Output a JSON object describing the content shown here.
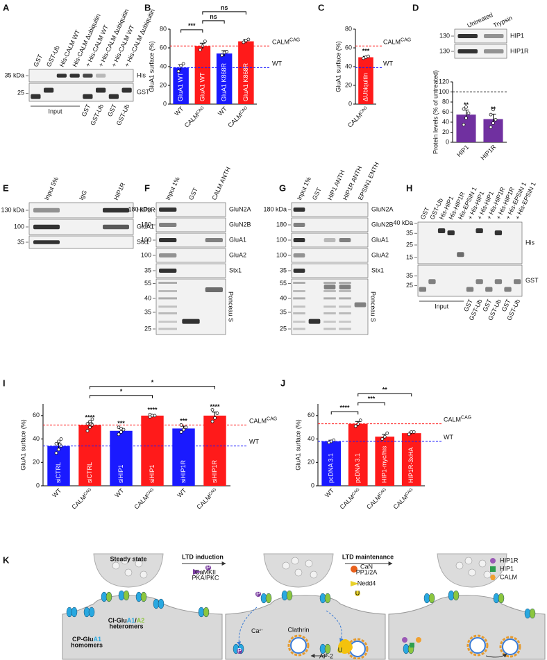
{
  "panel_labels": [
    "A",
    "B",
    "C",
    "D",
    "E",
    "F",
    "G",
    "H",
    "I",
    "J",
    "K"
  ],
  "blots": {
    "A": {
      "lanes": [
        "GST",
        "GST-Ub",
        "His-CALM WT",
        "His-CALM Δubiquitin",
        "+ His-CALM WT",
        "+ His-CALM Δubiquitin",
        "+ His-CALM WT",
        "+ His-CALM Δubiquitin"
      ],
      "markers": [
        "35 kDa",
        "25"
      ],
      "rows": [
        "His",
        "GST"
      ],
      "groups": [
        "Input",
        "GST",
        "GST-Ub",
        "GST",
        "GST-Ub"
      ]
    },
    "D": {
      "lanes": [
        "Untreated",
        "Trypsin"
      ],
      "markers": [
        "130",
        "130"
      ],
      "rows": [
        "HIP1",
        "HIP1R"
      ]
    },
    "E": {
      "lanes": [
        "Input 5%",
        "IgG",
        "HIP1R"
      ],
      "markers": [
        "130 kDa",
        "100",
        "35"
      ],
      "rows": [
        "HIP1R",
        "GluA1",
        "Stx1"
      ]
    },
    "F": {
      "lanes": [
        "Input 1%",
        "GST",
        "CALM ANTH"
      ],
      "markers": [
        "180 kDa",
        "180",
        "100",
        "100",
        "35",
        "55",
        "40",
        "35",
        "25"
      ],
      "rows": [
        "GluN2A",
        "GluN2B",
        "GluA1",
        "GluA2",
        "Stx1",
        "Ponceau S"
      ]
    },
    "G": {
      "lanes": [
        "Input 1%",
        "GST",
        "HIP1 ANTH",
        "HIP1R ANTH",
        "EPSIN1 ENTH"
      ],
      "markers": [
        "180 kDa",
        "180",
        "100",
        "100",
        "35",
        "55",
        "40",
        "35",
        "25"
      ],
      "rows": [
        "GluN2A",
        "GluN2B",
        "GluA1",
        "GluA2",
        "Stx1",
        "Ponceau S"
      ]
    },
    "H": {
      "lanes": [
        "GST",
        "GST-Ub",
        "His-HIP1",
        "His-HIP1R",
        "His-EPSIN 1",
        "+ His-HIP1",
        "+ His-HIP1",
        "+ His-HIP1R",
        "+ His-HIP1R",
        "+ His-EPSIN 1",
        "+ His-EPSIN 1"
      ],
      "markers": [
        "40 kDa",
        "35",
        "25",
        "15",
        "35",
        "25"
      ],
      "rows": [
        "His",
        "GST"
      ],
      "groups": [
        "Input",
        "GST",
        "GST-Ub",
        "GST",
        "GST-Ub",
        "GST",
        "GST-Ub"
      ]
    }
  },
  "chart_data": [
    {
      "type": "bar",
      "ylabel": "GluA1 surface (%)",
      "ylim": [
        0,
        80
      ],
      "yticks": [
        0,
        20,
        40,
        60,
        80
      ],
      "categories": [
        "WT",
        "CALM",
        "WT",
        "CALM"
      ],
      "category_superscripts": [
        null,
        "CAG",
        null,
        "CAG"
      ],
      "bar_labels": [
        "GluA1 WT",
        "GluA1 WT",
        "GluA1 K868R",
        "GluA1 K868R"
      ],
      "values": [
        39,
        62,
        54,
        67
      ],
      "errors": [
        3,
        3,
        3,
        2
      ],
      "points": [
        [
          35,
          41,
          43
        ],
        [
          58,
          62,
          67
        ],
        [
          52,
          55,
          56
        ],
        [
          66,
          68,
          69
        ]
      ],
      "colors": [
        "#1a1aff",
        "#ff1a1a",
        "#1a1aff",
        "#ff1a1a"
      ],
      "ref_lines": [
        {
          "value": 62,
          "color": "#ff1a1a",
          "label": "CALM",
          "label_sup": "CAG"
        },
        {
          "value": 39,
          "color": "#1a1aff",
          "label": "WT"
        }
      ],
      "brackets": [
        {
          "from": 0,
          "to": 1,
          "text": "***"
        },
        {
          "from": 1,
          "to": 2,
          "text": "ns"
        },
        {
          "from": 1,
          "to": 3,
          "text": "ns"
        }
      ]
    },
    {
      "type": "bar",
      "ylabel": "GluA1 surface (%)",
      "ylim": [
        0,
        80
      ],
      "yticks": [
        0,
        20,
        40,
        60,
        80
      ],
      "categories": [
        "CALM"
      ],
      "category_superscripts": [
        "CAG"
      ],
      "bar_labels": [
        "ΔUbiquitin"
      ],
      "values": [
        50
      ],
      "errors": [
        1
      ],
      "points": [
        [
          49,
          50,
          51
        ]
      ],
      "colors": [
        "#ff1a1a"
      ],
      "ref_lines": [
        {
          "value": 62,
          "color": "#ff1a1a",
          "label": "CALM",
          "label_sup": "CAG"
        },
        {
          "value": 39,
          "color": "#1a1aff",
          "label": "WT"
        }
      ],
      "stars": [
        "***"
      ]
    },
    {
      "type": "bar",
      "ylabel": "Protein levels (% of untreated)",
      "ylim": [
        0,
        120
      ],
      "yticks": [
        0,
        20,
        40,
        60,
        80,
        100,
        120
      ],
      "categories": [
        "HIP1",
        "HIP1R"
      ],
      "values": [
        55,
        46
      ],
      "errors": [
        9,
        10
      ],
      "points": [
        [
          35,
          48,
          58,
          66,
          70
        ],
        [
          30,
          38,
          45,
          55,
          65
        ]
      ],
      "colors": [
        "#7030a0",
        "#7030a0"
      ],
      "ref_lines": [
        {
          "value": 100,
          "color": "#000000"
        }
      ],
      "stars": [
        "**",
        "**"
      ]
    },
    {
      "type": "bar",
      "ylabel": "GluA1 surface (%)",
      "ylim": [
        0,
        70
      ],
      "yticks": [
        0,
        20,
        40,
        60
      ],
      "categories": [
        "WT",
        "CALM",
        "WT",
        "CALM",
        "WT",
        "CALM"
      ],
      "category_superscripts": [
        null,
        "CAG",
        null,
        "CAG",
        null,
        "CAG"
      ],
      "bar_labels": [
        "siCTRL",
        "siCTRL",
        "siHIP1",
        "siHIP1",
        "siHIP1R",
        "siHIP1R"
      ],
      "values": [
        34,
        52,
        47,
        60,
        49,
        60
      ],
      "errors": [
        2.5,
        2,
        2,
        0.5,
        2,
        3
      ],
      "points": [
        [
          28,
          31,
          34,
          36,
          38,
          40
        ],
        [
          47,
          50,
          52,
          53,
          55,
          57
        ],
        [
          44,
          46,
          48,
          50,
          49
        ],
        [
          59,
          60,
          60,
          61,
          60
        ],
        [
          46,
          48,
          50,
          52
        ],
        [
          55,
          58,
          62,
          65
        ]
      ],
      "colors": [
        "#1a1aff",
        "#ff1a1a",
        "#1a1aff",
        "#ff1a1a",
        "#1a1aff",
        "#ff1a1a"
      ],
      "ref_lines": [
        {
          "value": 52,
          "color": "#ff1a1a",
          "label": "CALM",
          "label_sup": "CAG"
        },
        {
          "value": 34,
          "color": "#1a1aff",
          "label": "WT"
        }
      ],
      "stars": [
        null,
        "****",
        "***",
        "****",
        "***",
        "****"
      ],
      "brackets": [
        {
          "from": 1,
          "to": 3,
          "text": "*"
        },
        {
          "from": 1,
          "to": 5,
          "text": "*"
        }
      ]
    },
    {
      "type": "bar",
      "ylabel": "GluA1 surface (%)",
      "ylim": [
        0,
        70
      ],
      "yticks": [
        0,
        20,
        40,
        60
      ],
      "categories": [
        "WT",
        "CALM",
        "CALM",
        "CALM"
      ],
      "category_superscripts": [
        null,
        "CAG",
        "CAG",
        "CAG"
      ],
      "bar_labels": [
        "pcDNA 3.1",
        "pcDNA 3.1",
        "HIP1-myc/his",
        "HIP1R-3xHA"
      ],
      "values": [
        38,
        53,
        42,
        45
      ],
      "errors": [
        1,
        2,
        2,
        1
      ],
      "points": [
        [
          37,
          38,
          39
        ],
        [
          51,
          53,
          56
        ],
        [
          40,
          42,
          45
        ],
        [
          44,
          46,
          46
        ]
      ],
      "colors": [
        "#1a1aff",
        "#ff1a1a",
        "#ff1a1a",
        "#ff1a1a"
      ],
      "ref_lines": [
        {
          "value": 53,
          "color": "#ff1a1a",
          "label": "CALM",
          "label_sup": "CAG"
        },
        {
          "value": 38,
          "color": "#1a1aff",
          "label": "WT"
        }
      ],
      "brackets": [
        {
          "from": 0,
          "to": 1,
          "text": "****"
        },
        {
          "from": 1,
          "to": 2,
          "text": "***"
        },
        {
          "from": 1,
          "to": 3,
          "text": "**"
        }
      ]
    }
  ],
  "diagram": {
    "headings": [
      "Steady state",
      "LTD induction",
      "LTD maintenance"
    ],
    "kinases": [
      "CaMKII",
      "PKA/PKC"
    ],
    "phosphatases": [
      "CaN",
      "PP1/2A"
    ],
    "ligase": "Nedd4",
    "heteromers": {
      "parts": [
        "CI-Glu",
        "A1",
        "/",
        "A2"
      ],
      "suffix": "heteromers"
    },
    "homomers": {
      "parts": [
        "CP-Glu",
        "A1"
      ],
      "suffix": "homomers"
    },
    "calcium": {
      "base": "Ca",
      "sup": "2+"
    },
    "clathrin": "Clathrin",
    "ap2": "AP-2",
    "legend": [
      "HIP1R",
      "HIP1",
      "CALM"
    ],
    "phospho": "P",
    "ubiquitin": "U"
  }
}
